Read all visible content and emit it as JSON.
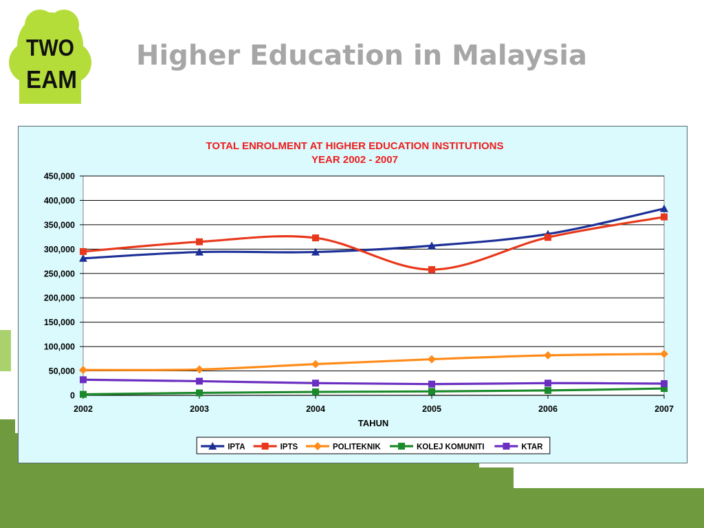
{
  "slide": {
    "title": "Higher Education in Malaysia",
    "logo_text_top": "TWO",
    "logo_text_bottom": "EAM"
  },
  "colors": {
    "title": "#a6a6a6",
    "chart_background": "#dbfafd",
    "chart_title": "#ee1c1c",
    "green": "#6f9a3e",
    "logo_green": "#b4dd3a"
  },
  "icons": [
    "logo-tree-icon",
    "city-skyline-icon"
  ],
  "chart_data": {
    "type": "line",
    "title": "TOTAL ENROLMENT AT HIGHER EDUCATION INSTITUTIONS",
    "subtitle": "YEAR 2002 - 2007",
    "xlabel": "TAHUN",
    "ylabel": "",
    "categories": [
      "2002",
      "2003",
      "2004",
      "2005",
      "2006",
      "2007"
    ],
    "ylim": [
      0,
      450000
    ],
    "yticks": [
      "0",
      "50,000",
      "100,000",
      "150,000",
      "200,000",
      "250,000",
      "300,000",
      "350,000",
      "400,000",
      "450,000"
    ],
    "grid": true,
    "legend_position": "bottom",
    "series": [
      {
        "name": "IPTA",
        "color": "#1c2f96",
        "marker": "triangle",
        "values": [
          281000,
          294000,
          294000,
          307000,
          331000,
          383000
        ]
      },
      {
        "name": "IPTS",
        "color": "#e8381b",
        "marker": "square",
        "values": [
          295000,
          315000,
          323000,
          258000,
          324000,
          366000
        ]
      },
      {
        "name": "POLITEKNIK",
        "color": "#ff8b19",
        "marker": "diamond",
        "values": [
          52000,
          53000,
          64000,
          74000,
          82000,
          85000
        ]
      },
      {
        "name": "KOLEJ KOMUNITI",
        "color": "#1a8a2a",
        "marker": "square",
        "values": [
          2000,
          5000,
          7000,
          8000,
          10000,
          14000
        ]
      },
      {
        "name": "KTAR",
        "color": "#6a2fc0",
        "marker": "square",
        "values": [
          32000,
          29000,
          25000,
          23000,
          25000,
          24000
        ]
      }
    ]
  }
}
